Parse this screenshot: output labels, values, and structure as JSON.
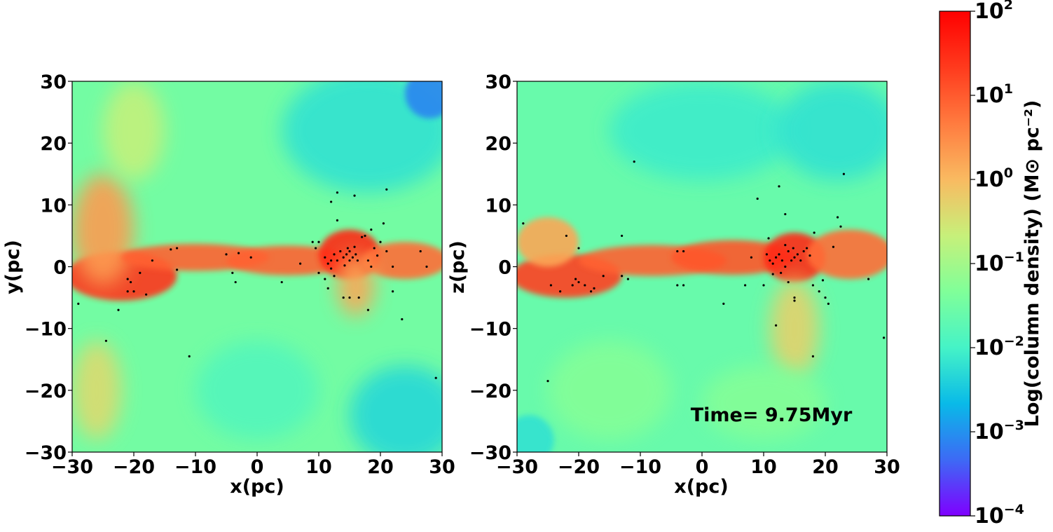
{
  "chart_data": [
    {
      "type": "heatmap",
      "panel": "xy",
      "xlabel": "x(pc)",
      "ylabel": "y(pc)",
      "xlim": [
        -30,
        30
      ],
      "ylim": [
        -30,
        30
      ],
      "xticks": [
        -30,
        -20,
        -10,
        0,
        10,
        20,
        30
      ],
      "yticks": [
        -30,
        -20,
        -10,
        0,
        10,
        20,
        30
      ],
      "xtick_labels": [
        "−30",
        "−20",
        "−10",
        "0",
        "10",
        "20",
        "30"
      ],
      "ytick_labels": [
        "−30",
        "−20",
        "−10",
        "0",
        "10",
        "20",
        "30"
      ],
      "background_level": 0.42,
      "gas_features": [
        {
          "x": -22,
          "y": -1.5,
          "rx": 9,
          "ry": 4,
          "level": 0.9
        },
        {
          "x": -25,
          "y": 6,
          "rx": 5,
          "ry": 9,
          "level": 0.72
        },
        {
          "x": -10,
          "y": 1.5,
          "rx": 12,
          "ry": 2.2,
          "level": 0.82
        },
        {
          "x": 5,
          "y": 1,
          "rx": 10,
          "ry": 2.4,
          "level": 0.82
        },
        {
          "x": 15,
          "y": 2,
          "rx": 5,
          "ry": 4,
          "level": 0.92
        },
        {
          "x": 24,
          "y": 1,
          "rx": 7,
          "ry": 3,
          "level": 0.8
        },
        {
          "x": 16,
          "y": -3,
          "rx": 3,
          "ry": 5,
          "level": 0.7
        },
        {
          "x": -26,
          "y": -20,
          "rx": 4,
          "ry": 8,
          "level": 0.6
        },
        {
          "x": -20,
          "y": 22,
          "rx": 5,
          "ry": 8,
          "level": 0.55
        },
        {
          "x": 18,
          "y": 22,
          "rx": 14,
          "ry": 10,
          "level": 0.3
        },
        {
          "x": 28,
          "y": 28,
          "rx": 4,
          "ry": 4,
          "level": 0.15
        },
        {
          "x": 24,
          "y": -24,
          "rx": 9,
          "ry": 8,
          "level": 0.28
        },
        {
          "x": 0,
          "y": -20,
          "rx": 10,
          "ry": 8,
          "level": 0.36
        }
      ],
      "stars": [
        [
          -29,
          -6
        ],
        [
          -24.5,
          -12
        ],
        [
          -22.5,
          -7
        ],
        [
          -21,
          -4
        ],
        [
          -20.5,
          -2.5
        ],
        [
          -20,
          -4
        ],
        [
          -21,
          -2
        ],
        [
          -19,
          -1
        ],
        [
          -18,
          -4.5
        ],
        [
          -17,
          1
        ],
        [
          -14,
          2.8
        ],
        [
          -13,
          3
        ],
        [
          -13,
          -0.5
        ],
        [
          -11,
          -14.5
        ],
        [
          -5,
          2
        ],
        [
          -4,
          -1
        ],
        [
          -3.5,
          -2.5
        ],
        [
          -3,
          2.2
        ],
        [
          -1,
          1.5
        ],
        [
          4,
          -2.5
        ],
        [
          7,
          0.5
        ],
        [
          9,
          4
        ],
        [
          9.5,
          3
        ],
        [
          10,
          4
        ],
        [
          11,
          1.5
        ],
        [
          11.5,
          0.5
        ],
        [
          12,
          1
        ],
        [
          12.5,
          2
        ],
        [
          13,
          1
        ],
        [
          13.5,
          2.5
        ],
        [
          14,
          1.5
        ],
        [
          14.5,
          2
        ],
        [
          15,
          2.5
        ],
        [
          15.5,
          1.5
        ],
        [
          16,
          2
        ],
        [
          15,
          1
        ],
        [
          14.7,
          3
        ],
        [
          15.8,
          3.2
        ],
        [
          16.3,
          1
        ],
        [
          14.2,
          0.2
        ],
        [
          13,
          12
        ],
        [
          12,
          10.5
        ],
        [
          13,
          7.5
        ],
        [
          15.8,
          11.5
        ],
        [
          17.5,
          5
        ],
        [
          18.5,
          6
        ],
        [
          19,
          3
        ],
        [
          20,
          4
        ],
        [
          21,
          2.5
        ],
        [
          21,
          12.5
        ],
        [
          20.5,
          7
        ],
        [
          22,
          0
        ],
        [
          23.5,
          -8.5
        ],
        [
          22,
          -4
        ],
        [
          18,
          -7
        ],
        [
          16.5,
          -5
        ],
        [
          15,
          -5
        ],
        [
          14,
          -5
        ],
        [
          11.5,
          -3.5
        ],
        [
          11,
          -2
        ],
        [
          12.5,
          -1.5
        ],
        [
          18,
          1
        ],
        [
          18.5,
          0
        ],
        [
          26.5,
          2.5
        ],
        [
          27.5,
          0
        ],
        [
          29,
          -18
        ],
        [
          10,
          -1
        ],
        [
          12,
          -0.3
        ],
        [
          17,
          4.8
        ],
        [
          19.5,
          1.8
        ]
      ]
    },
    {
      "type": "heatmap",
      "panel": "xz",
      "xlabel": "x(pc)",
      "ylabel": "z(pc)",
      "xlim": [
        -30,
        30
      ],
      "ylim": [
        -30,
        30
      ],
      "xticks": [
        -30,
        -20,
        -10,
        0,
        10,
        20,
        30
      ],
      "yticks": [
        -30,
        -20,
        -10,
        0,
        10,
        20,
        30
      ],
      "xtick_labels": [
        "−30",
        "−20",
        "−10",
        "0",
        "10",
        "20",
        "30"
      ],
      "ytick_labels": [
        "−30",
        "−20",
        "−10",
        "0",
        "10",
        "20",
        "30"
      ],
      "annotation": "Time= 9.75Myr",
      "background_level": 0.4,
      "gas_features": [
        {
          "x": -22,
          "y": -1.5,
          "rx": 9,
          "ry": 3.5,
          "level": 0.88
        },
        {
          "x": -25,
          "y": 4,
          "rx": 5,
          "ry": 4,
          "level": 0.7
        },
        {
          "x": -8,
          "y": 1,
          "rx": 12,
          "ry": 2.5,
          "level": 0.82
        },
        {
          "x": 5,
          "y": 1.5,
          "rx": 10,
          "ry": 2.8,
          "level": 0.84
        },
        {
          "x": 15,
          "y": 1.5,
          "rx": 5,
          "ry": 4,
          "level": 0.92
        },
        {
          "x": 24,
          "y": 2,
          "rx": 7,
          "ry": 4,
          "level": 0.8
        },
        {
          "x": 15,
          "y": -10,
          "rx": 4,
          "ry": 8,
          "level": 0.62
        },
        {
          "x": 0,
          "y": 22,
          "rx": 15,
          "ry": 8,
          "level": 0.32
        },
        {
          "x": 22,
          "y": 22,
          "rx": 10,
          "ry": 8,
          "level": 0.3
        },
        {
          "x": -28,
          "y": -28,
          "rx": 4,
          "ry": 4,
          "level": 0.3
        },
        {
          "x": -15,
          "y": -20,
          "rx": 10,
          "ry": 8,
          "level": 0.45
        },
        {
          "x": 10,
          "y": -22,
          "rx": 10,
          "ry": 6,
          "level": 0.45
        }
      ],
      "stars": [
        [
          -29,
          7
        ],
        [
          -25,
          -18.5
        ],
        [
          -24.5,
          -3
        ],
        [
          -23,
          -4
        ],
        [
          -21,
          -3
        ],
        [
          -20.5,
          -2
        ],
        [
          -20,
          -2.5
        ],
        [
          -19,
          -3
        ],
        [
          -18,
          -4
        ],
        [
          -17.5,
          -3.5
        ],
        [
          -16,
          -1.5
        ],
        [
          -13,
          -1.5
        ],
        [
          -12,
          -2
        ],
        [
          -11,
          17
        ],
        [
          -13,
          5
        ],
        [
          -20,
          3
        ],
        [
          -22,
          5
        ],
        [
          -4,
          2.5
        ],
        [
          -3,
          2.5
        ],
        [
          -3,
          -3
        ],
        [
          -4,
          -3
        ],
        [
          3.5,
          -6
        ],
        [
          7,
          -3
        ],
        [
          8,
          1.5
        ],
        [
          9,
          11
        ],
        [
          10,
          -3
        ],
        [
          11,
          1
        ],
        [
          11.5,
          0.5
        ],
        [
          12,
          1.5
        ],
        [
          12.5,
          2
        ],
        [
          13,
          1
        ],
        [
          13.5,
          0
        ],
        [
          14,
          2.5
        ],
        [
          14.5,
          1
        ],
        [
          15,
          1.5
        ],
        [
          15.5,
          2
        ],
        [
          16,
          1
        ],
        [
          14.8,
          3
        ],
        [
          16.5,
          2.5
        ],
        [
          13.5,
          3.5
        ],
        [
          14,
          -2.5
        ],
        [
          15,
          -5
        ],
        [
          15,
          -5.5
        ],
        [
          17,
          3
        ],
        [
          18,
          -3
        ],
        [
          19,
          -4
        ],
        [
          20,
          -5
        ],
        [
          20.5,
          -6
        ],
        [
          22,
          8
        ],
        [
          22.5,
          6.5
        ],
        [
          23,
          15
        ],
        [
          27,
          -2
        ],
        [
          29.5,
          -11.5
        ],
        [
          12.5,
          13
        ],
        [
          12,
          -9.5
        ],
        [
          13.5,
          8.5
        ],
        [
          18,
          -14.5
        ],
        [
          10.5,
          2
        ],
        [
          11.5,
          -1.2
        ],
        [
          17.5,
          1.8
        ],
        [
          18.2,
          5.5
        ],
        [
          21.3,
          3.2
        ],
        [
          12.8,
          -1
        ],
        [
          10.8,
          4.6
        ],
        [
          19.6,
          -2.2
        ]
      ]
    }
  ],
  "colorbar": {
    "label": "Log(column density) (M⊙ pc⁻²)",
    "range_log10": [
      -4,
      2
    ],
    "ticks": [
      {
        "value": 2,
        "base": "10",
        "exp": "2"
      },
      {
        "value": 1,
        "base": "10",
        "exp": "1"
      },
      {
        "value": 0,
        "base": "10",
        "exp": "0"
      },
      {
        "value": -1,
        "base": "10",
        "exp": "−1"
      },
      {
        "value": -2,
        "base": "10",
        "exp": "−2"
      },
      {
        "value": -3,
        "base": "10",
        "exp": "−3"
      },
      {
        "value": -4,
        "base": "10",
        "exp": "−4"
      }
    ],
    "colors": [
      "#7f00ff",
      "#3d6af5",
      "#09bae8",
      "#45f3c7",
      "#80ff99",
      "#c7f07a",
      "#f9ba61",
      "#ff7b3f",
      "#ff3a1d",
      "#ff0000"
    ]
  }
}
